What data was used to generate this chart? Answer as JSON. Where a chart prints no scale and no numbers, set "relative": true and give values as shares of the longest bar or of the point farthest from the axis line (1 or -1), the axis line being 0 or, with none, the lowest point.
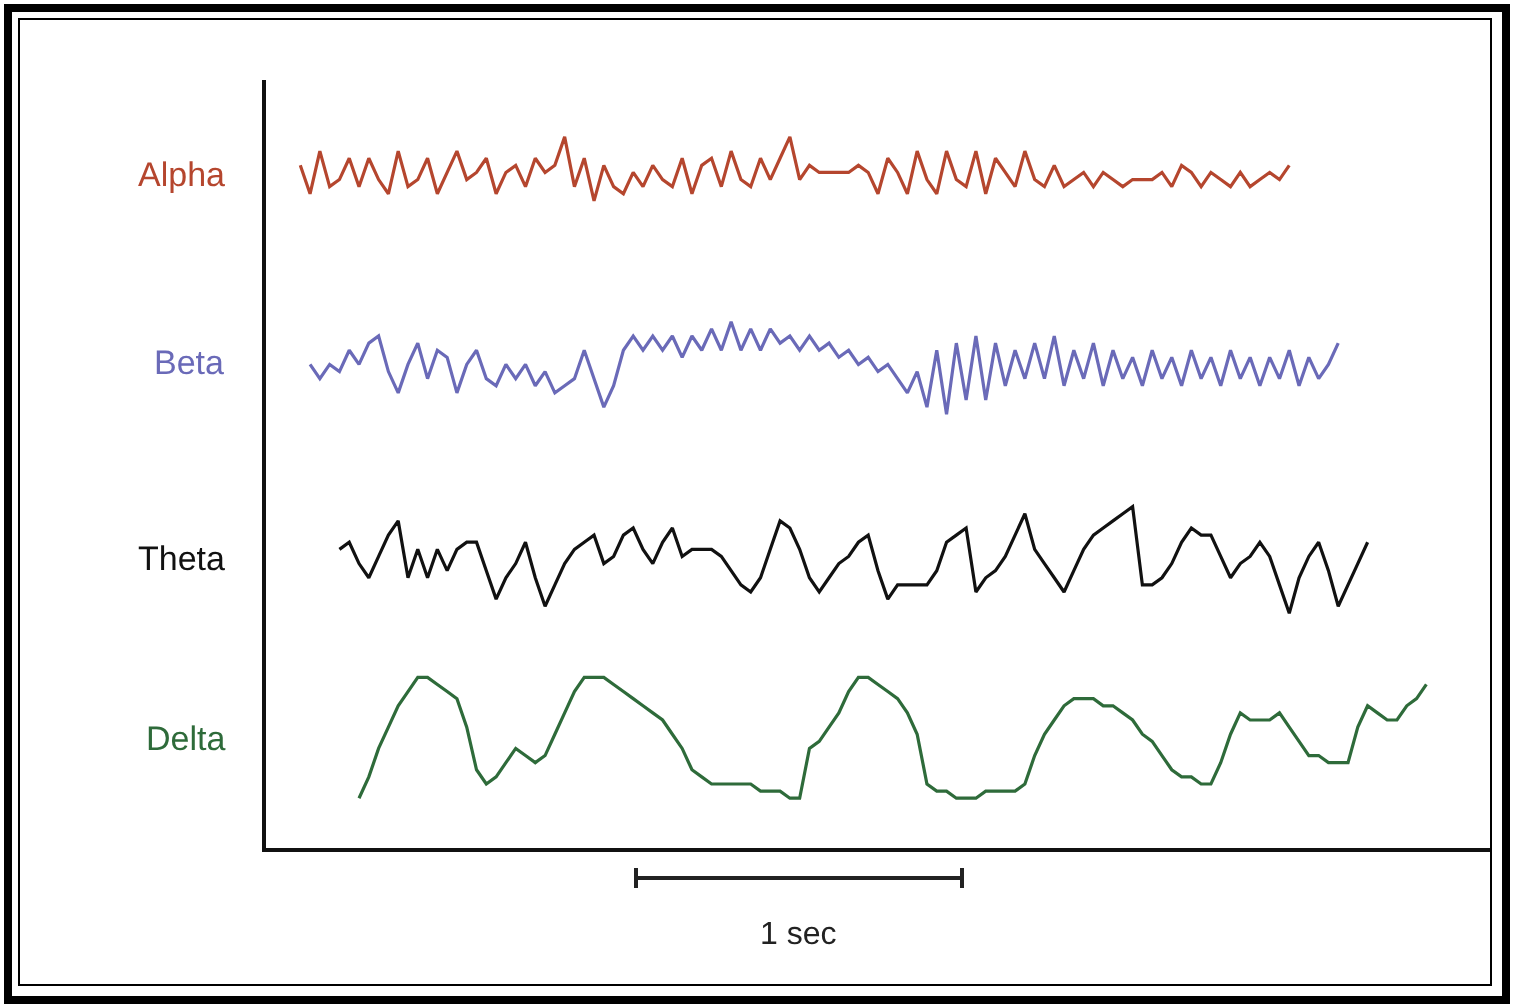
{
  "chart_data": {
    "type": "line",
    "relative": true,
    "grid": false,
    "legend": false,
    "marker": "none",
    "line_style": "solid",
    "annotations": [
      "1 sec"
    ],
    "categories": [
      null,
      null,
      null,
      null,
      null,
      null,
      null,
      null,
      null,
      null,
      null,
      null,
      null,
      null,
      null,
      null,
      null,
      null,
      null,
      null,
      null,
      null,
      null,
      null,
      null,
      null,
      null,
      null,
      null,
      null,
      null,
      null,
      null,
      null,
      null,
      null,
      null,
      null,
      null,
      null,
      null,
      null,
      null,
      null,
      null,
      null,
      null,
      null,
      null,
      null,
      null,
      null,
      null,
      null,
      null,
      null,
      null,
      null,
      null,
      null,
      null,
      null,
      null,
      null,
      null,
      null,
      null,
      null,
      null,
      null,
      null,
      null,
      null,
      null,
      null,
      null,
      null,
      null,
      null,
      null,
      null,
      null,
      null,
      null,
      null,
      null,
      null,
      null,
      null,
      null,
      null,
      null,
      null,
      null,
      null,
      null,
      null,
      null,
      null,
      null,
      null,
      null,
      null,
      null,
      null,
      null,
      null,
      null,
      null,
      null,
      null,
      null,
      null,
      null,
      null,
      null,
      null,
      null,
      null,
      null,
      null,
      null,
      null,
      null,
      null
    ],
    "series": [
      {
        "name": "Alpha",
        "color": "#b5462e",
        "values": [
          null,
          null,
          null,
          0.96,
          0.92,
          0.98,
          0.93,
          0.94,
          0.97,
          0.93,
          0.97,
          0.94,
          0.92,
          0.98,
          0.93,
          0.94,
          0.97,
          0.92,
          0.95,
          0.98,
          0.94,
          0.95,
          0.97,
          0.92,
          0.95,
          0.96,
          0.93,
          0.97,
          0.95,
          0.96,
          1.0,
          0.93,
          0.97,
          0.91,
          0.96,
          0.93,
          0.92,
          0.95,
          0.93,
          0.96,
          0.94,
          0.93,
          0.97,
          0.92,
          0.96,
          0.97,
          0.93,
          0.98,
          0.94,
          0.93,
          0.97,
          0.94,
          0.97,
          1.0,
          0.94,
          0.96,
          0.95,
          0.95,
          0.95,
          0.95,
          0.96,
          0.95,
          0.92,
          0.97,
          0.95,
          0.92,
          0.98,
          0.94,
          0.92,
          0.98,
          0.94,
          0.93,
          0.98,
          0.92,
          0.97,
          0.95,
          0.93,
          0.98,
          0.94,
          0.93,
          0.96,
          0.93,
          0.94,
          0.95,
          0.93,
          0.95,
          0.94,
          0.93,
          0.94,
          0.94,
          0.94,
          0.95,
          0.93,
          0.96,
          0.95,
          0.93,
          0.95,
          0.94,
          0.93,
          0.95,
          0.93,
          0.94,
          0.95,
          0.94,
          0.96,
          null,
          null,
          null,
          null,
          null,
          null,
          null,
          null,
          null,
          null,
          null,
          null,
          null,
          null,
          null,
          null,
          null,
          null,
          null,
          null
        ]
      },
      {
        "name": "Beta",
        "color": "#6a6ab8",
        "values": [
          null,
          null,
          null,
          null,
          0.68,
          0.66,
          0.68,
          0.67,
          0.7,
          0.68,
          0.71,
          0.72,
          0.67,
          0.64,
          0.68,
          0.71,
          0.66,
          0.7,
          0.69,
          0.64,
          0.68,
          0.7,
          0.66,
          0.65,
          0.68,
          0.66,
          0.68,
          0.65,
          0.67,
          0.64,
          0.65,
          0.66,
          0.7,
          0.66,
          0.62,
          0.65,
          0.7,
          0.72,
          0.7,
          0.72,
          0.7,
          0.72,
          0.69,
          0.72,
          0.7,
          0.73,
          0.7,
          0.74,
          0.7,
          0.73,
          0.7,
          0.73,
          0.71,
          0.72,
          0.7,
          0.72,
          0.7,
          0.71,
          0.69,
          0.7,
          0.68,
          0.69,
          0.67,
          0.68,
          0.66,
          0.64,
          0.67,
          0.62,
          0.7,
          0.61,
          0.71,
          0.63,
          0.72,
          0.63,
          0.71,
          0.65,
          0.7,
          0.66,
          0.71,
          0.66,
          0.72,
          0.65,
          0.7,
          0.66,
          0.71,
          0.65,
          0.7,
          0.66,
          0.69,
          0.65,
          0.7,
          0.66,
          0.69,
          0.65,
          0.7,
          0.66,
          0.69,
          0.65,
          0.7,
          0.66,
          0.69,
          0.65,
          0.69,
          0.66,
          0.7,
          0.65,
          0.69,
          0.66,
          0.68,
          0.71,
          null,
          null,
          null,
          null,
          null,
          null,
          null,
          null,
          null,
          null,
          null,
          null,
          null,
          null,
          null
        ]
      },
      {
        "name": "Theta",
        "color": "#111111",
        "values": [
          null,
          null,
          null,
          null,
          null,
          null,
          null,
          0.42,
          0.43,
          0.4,
          0.38,
          0.41,
          0.44,
          0.46,
          0.38,
          0.42,
          0.38,
          0.42,
          0.39,
          0.42,
          0.43,
          0.43,
          0.39,
          0.35,
          0.38,
          0.4,
          0.43,
          0.38,
          0.34,
          0.37,
          0.4,
          0.42,
          0.43,
          0.44,
          0.4,
          0.41,
          0.44,
          0.45,
          0.42,
          0.4,
          0.43,
          0.45,
          0.41,
          0.42,
          0.42,
          0.42,
          0.41,
          0.39,
          0.37,
          0.36,
          0.38,
          0.42,
          0.46,
          0.45,
          0.42,
          0.38,
          0.36,
          0.38,
          0.4,
          0.41,
          0.43,
          0.44,
          0.39,
          0.35,
          0.37,
          0.37,
          0.37,
          0.37,
          0.39,
          0.43,
          0.44,
          0.45,
          0.36,
          0.38,
          0.39,
          0.41,
          0.44,
          0.47,
          0.42,
          0.4,
          0.38,
          0.36,
          0.39,
          0.42,
          0.44,
          0.45,
          0.46,
          0.47,
          0.48,
          0.37,
          0.37,
          0.38,
          0.4,
          0.43,
          0.45,
          0.44,
          0.44,
          0.41,
          0.38,
          0.4,
          0.41,
          0.43,
          0.41,
          0.37,
          0.33,
          0.38,
          0.41,
          0.43,
          0.39,
          0.34,
          0.37,
          0.4,
          0.43,
          null,
          null,
          null,
          null,
          null,
          null,
          null,
          null,
          null,
          null,
          null,
          null
        ]
      },
      {
        "name": "Delta",
        "color": "#2e6b3a",
        "values": [
          null,
          null,
          null,
          null,
          null,
          null,
          null,
          null,
          null,
          0.07,
          0.1,
          0.14,
          0.17,
          0.2,
          0.22,
          0.24,
          0.24,
          0.23,
          0.22,
          0.21,
          0.17,
          0.11,
          0.09,
          0.1,
          0.12,
          0.14,
          0.13,
          0.12,
          0.13,
          0.16,
          0.19,
          0.22,
          0.24,
          0.24,
          0.24,
          0.23,
          0.22,
          0.21,
          0.2,
          0.19,
          0.18,
          0.16,
          0.14,
          0.11,
          0.1,
          0.09,
          0.09,
          0.09,
          0.09,
          0.09,
          0.08,
          0.08,
          0.08,
          0.07,
          0.07,
          0.14,
          0.15,
          0.17,
          0.19,
          0.22,
          0.24,
          0.24,
          0.23,
          0.22,
          0.21,
          0.19,
          0.16,
          0.09,
          0.08,
          0.08,
          0.07,
          0.07,
          0.07,
          0.08,
          0.08,
          0.08,
          0.08,
          0.09,
          0.13,
          0.16,
          0.18,
          0.2,
          0.21,
          0.21,
          0.21,
          0.2,
          0.2,
          0.19,
          0.18,
          0.16,
          0.15,
          0.13,
          0.11,
          0.1,
          0.1,
          0.09,
          0.09,
          0.12,
          0.16,
          0.19,
          0.18,
          0.18,
          0.18,
          0.19,
          0.17,
          0.15,
          0.13,
          0.13,
          0.12,
          0.12,
          0.12,
          0.17,
          0.2,
          0.19,
          0.18,
          0.18,
          0.2,
          0.21,
          0.23,
          null,
          null,
          null,
          null,
          null,
          null
        ]
      }
    ]
  }
}
